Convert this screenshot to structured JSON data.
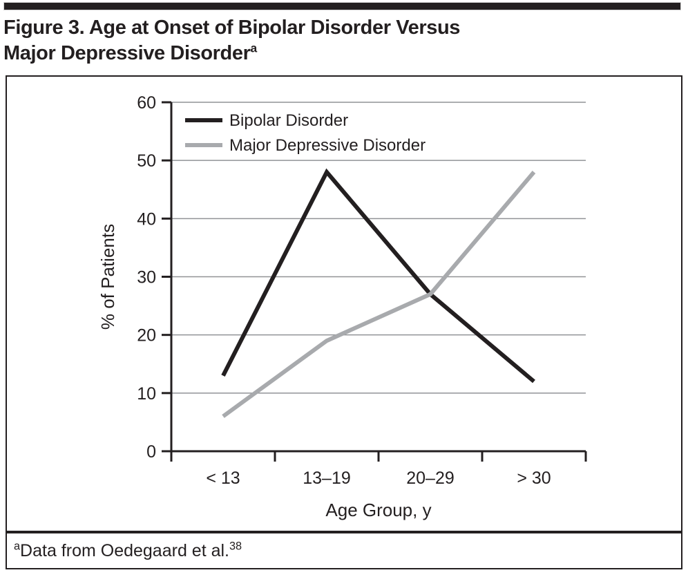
{
  "figure": {
    "title_line1": "Figure 3. Age at Onset of Bipolar Disorder Versus",
    "title_line2": "Major Depressive Disorder",
    "title_superscript": "a"
  },
  "footnote": {
    "superscript": "a",
    "text": "Data from Oedegaard et al.",
    "reference_superscript": "38"
  },
  "colors": {
    "ink": "#231f20",
    "series_black": "#231f20",
    "series_gray": "#a8aaad",
    "gridline": "#919396",
    "panel_border": "#231f20"
  },
  "chart_data": {
    "type": "line",
    "categories": [
      "< 13",
      "13–19",
      "20–29",
      "> 30"
    ],
    "series": [
      {
        "name": "Bipolar Disorder",
        "color": "#231f20",
        "values": [
          13,
          48,
          27,
          12
        ]
      },
      {
        "name": "Major Depressive Disorder",
        "color": "#a8aaad",
        "values": [
          6,
          19,
          27,
          48
        ]
      }
    ],
    "xlabel": "Age Group, y",
    "ylabel": "% of Patients",
    "ylim": [
      0,
      60
    ],
    "ytick_step": 10,
    "ytick_labels": [
      "0",
      "10",
      "20",
      "30",
      "40",
      "50",
      "60"
    ],
    "grid": "horizontal",
    "legend_position": "top-left"
  }
}
